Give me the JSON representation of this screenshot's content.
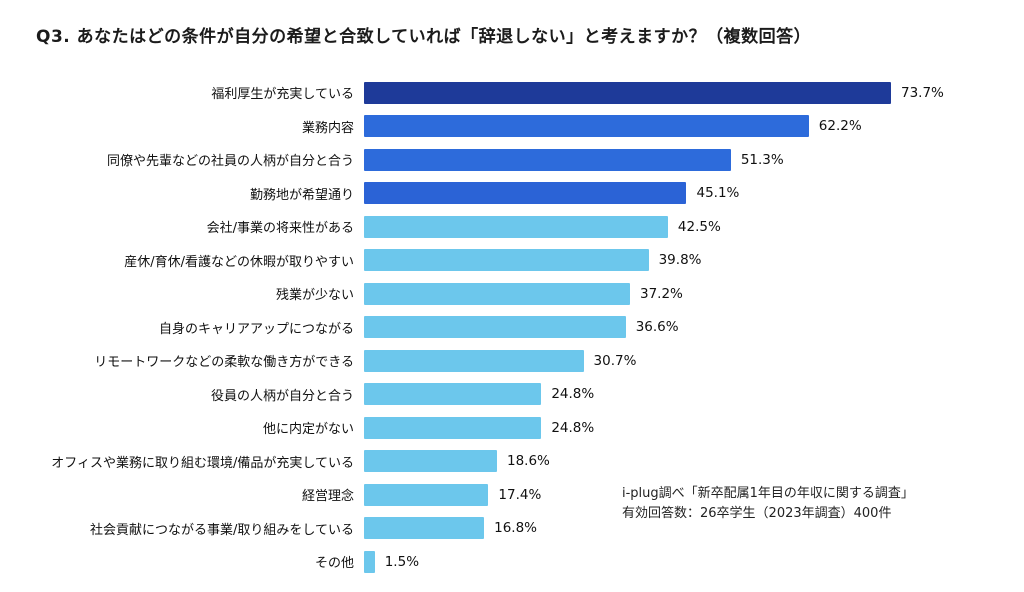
{
  "title": "Q3. あなたはどの条件が自分の希望と合致していれば「辞退しない」と考えますか？（複数回答）",
  "note": {
    "line1": "i-plug調べ「新卒配属1年目の年収に関する調査」",
    "line2": "有効回答数：26卒学生（2023年調査）400件"
  },
  "chart_data": {
    "type": "bar",
    "orientation": "horizontal",
    "title": "Q3. あなたはどの条件が自分の希望と合致していれば「辞退しない」と考えますか？（複数回答）",
    "xlabel": "",
    "ylabel": "",
    "xlim": [
      0,
      80
    ],
    "grid": false,
    "legend": "none",
    "value_suffix": "%",
    "categories": [
      "福利厚生が充実している",
      "業務内容",
      "同僚や先輩などの社員の人柄が自分と合う",
      "勤務地が希望通り",
      "会社/事業の将来性がある",
      "産休/育休/看護などの休暇が取りやすい",
      "残業が少ない",
      "自身のキャリアアップにつながる",
      "リモートワークなどの柔軟な働き方ができる",
      "役員の人柄が自分と合う",
      "他に内定がない",
      "オフィスや業務に取り組む環境/備品が充実している",
      "経営理念",
      "社会貢献につながる事業/取り組みをしている",
      "その他"
    ],
    "values": [
      73.7,
      62.2,
      51.3,
      45.1,
      42.5,
      39.8,
      37.2,
      36.6,
      30.7,
      24.8,
      24.8,
      18.6,
      17.4,
      16.8,
      1.5
    ],
    "bar_colors": [
      "#1e3a99",
      "#2d6bdb",
      "#2d6bdb",
      "#2b63d6",
      "#6cc7ec",
      "#6cc7ec",
      "#6cc7ec",
      "#6cc7ec",
      "#6cc7ec",
      "#6cc7ec",
      "#6cc7ec",
      "#6cc7ec",
      "#6cc7ec",
      "#6cc7ec",
      "#6cc7ec"
    ]
  }
}
